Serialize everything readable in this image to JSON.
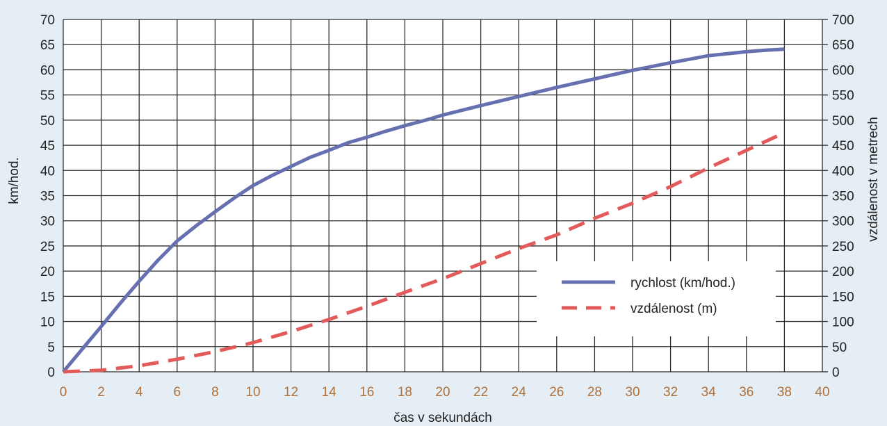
{
  "chart_data": {
    "type": "line",
    "xlabel": "čas v sekundách",
    "ylabel_left": "km/hod.",
    "ylabel_right": "vzdálenost v metrech",
    "xlim": [
      0,
      40
    ],
    "ylim_left": [
      0,
      70
    ],
    "ylim_right": [
      0,
      700
    ],
    "x_ticks": [
      0,
      2,
      4,
      6,
      8,
      10,
      12,
      14,
      16,
      18,
      20,
      22,
      24,
      26,
      28,
      30,
      32,
      34,
      36,
      38,
      40
    ],
    "y_ticks_left": [
      0,
      5,
      10,
      15,
      20,
      25,
      30,
      35,
      40,
      45,
      50,
      55,
      60,
      65,
      70
    ],
    "y_ticks_right": [
      0,
      50,
      100,
      150,
      200,
      250,
      300,
      350,
      400,
      450,
      500,
      550,
      600,
      650,
      700
    ],
    "grid": true,
    "legend_position": "bottom-right",
    "series": [
      {
        "name": "rychlost (km/hod.)",
        "axis": "left",
        "color": "#6670b0",
        "style": "solid",
        "x": [
          0,
          1,
          2,
          3,
          4,
          5,
          6,
          7,
          8,
          9,
          10,
          11,
          12,
          13,
          14,
          15,
          16,
          17,
          18,
          19,
          20,
          22,
          24,
          26,
          28,
          30,
          32,
          34,
          36,
          37,
          38
        ],
        "y": [
          0,
          4.5,
          9,
          13.6,
          18,
          22.2,
          26,
          29,
          31.8,
          34.5,
          37,
          39,
          40.8,
          42.6,
          44,
          45.5,
          46.6,
          47.8,
          48.9,
          49.9,
          51,
          52.9,
          54.7,
          56.5,
          58.2,
          59.9,
          61.4,
          62.8,
          63.6,
          63.9,
          64.1
        ]
      },
      {
        "name": "vzdálenost (m)",
        "axis": "right",
        "color": "#e35a5a",
        "style": "dashed",
        "x": [
          0,
          2,
          4,
          6,
          8,
          10,
          12,
          14,
          16,
          18,
          20,
          22,
          24,
          26,
          28,
          30,
          32,
          34,
          36,
          38
        ],
        "y": [
          0,
          3,
          12,
          25,
          40,
          58,
          80,
          104,
          130,
          158,
          185,
          215,
          245,
          272,
          305,
          335,
          368,
          405,
          440,
          475
        ]
      }
    ]
  }
}
